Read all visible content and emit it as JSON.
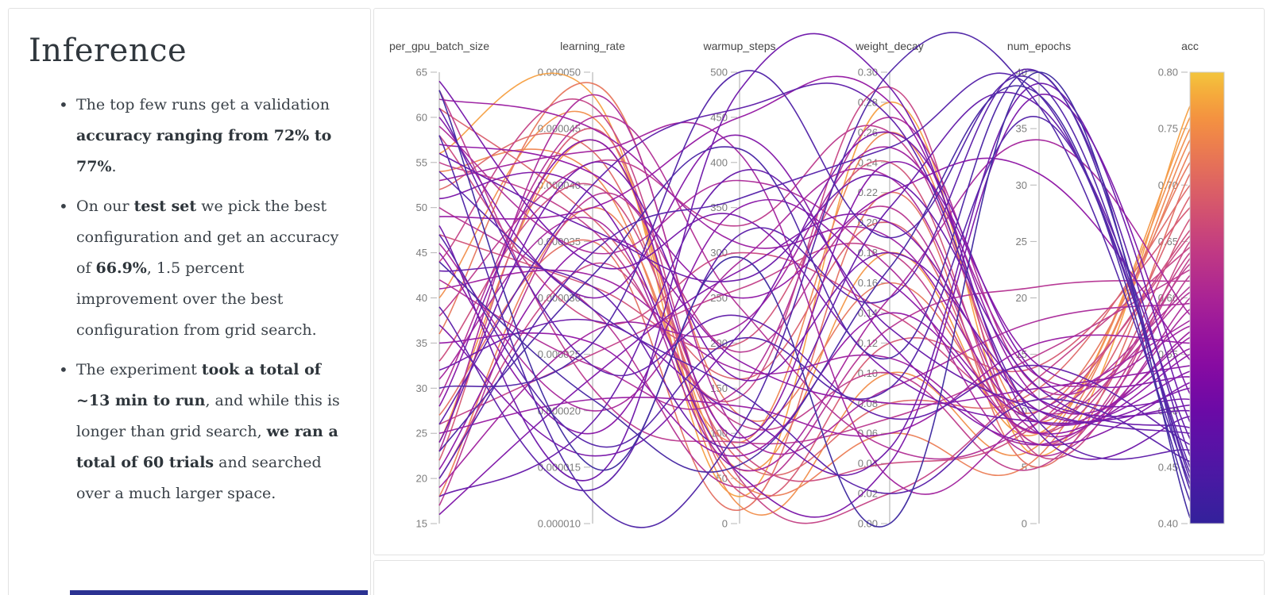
{
  "left_panel": {
    "title": "Inference",
    "bullets": [
      {
        "segments": [
          {
            "text": "The top few runs get a validation ",
            "bold": false
          },
          {
            "text": "accuracy ranging from 72% to 77%",
            "bold": true
          },
          {
            "text": ".",
            "bold": false
          }
        ]
      },
      {
        "segments": [
          {
            "text": "On our ",
            "bold": false
          },
          {
            "text": "test set",
            "bold": true
          },
          {
            "text": " we pick the best configuration and get an accuracy of ",
            "bold": false
          },
          {
            "text": "66.9%",
            "bold": true
          },
          {
            "text": ", 1.5 percent improvement over the best configuration from grid search.",
            "bold": false
          }
        ]
      },
      {
        "segments": [
          {
            "text": "The experiment ",
            "bold": false
          },
          {
            "text": "took a total of ~13 min to run",
            "bold": true
          },
          {
            "text": ", and while this is longer than grid search, ",
            "bold": false
          },
          {
            "text": "we ran a total of 60 trials",
            "bold": true
          },
          {
            "text": " and searched over a much larger space.",
            "bold": false
          }
        ]
      }
    ],
    "next_section_accent_color": "#2c3292"
  },
  "chart_data": {
    "type": "parallel_coordinates",
    "color_by": "acc",
    "legend_position": "right-colorbar",
    "grid": false,
    "axis_line_color": "#d4d4d4",
    "tick_label_color": "#7d7d7d",
    "title_color": "#474747",
    "colormap": {
      "name": "plasma",
      "stops": [
        [
          0.0,
          "#33219b"
        ],
        [
          0.12,
          "#4d17a5"
        ],
        [
          0.25,
          "#6b0aa6"
        ],
        [
          0.37,
          "#8c0ba1"
        ],
        [
          0.5,
          "#aa2395"
        ],
        [
          0.62,
          "#c43d80"
        ],
        [
          0.72,
          "#d85a6a"
        ],
        [
          0.82,
          "#ea7852"
        ],
        [
          0.92,
          "#f69a3c"
        ],
        [
          1.0,
          "#f3c53d"
        ]
      ]
    },
    "axes": [
      {
        "label": "per_gpu_batch_size",
        "min": 15,
        "max": 65,
        "tick_values": [
          65,
          60,
          55,
          50,
          45,
          40,
          35,
          30,
          25,
          20,
          15
        ],
        "tick_labels": [
          "65",
          "60",
          "55",
          "50",
          "45",
          "40",
          "35",
          "30",
          "25",
          "20",
          "15"
        ]
      },
      {
        "label": "learning_rate",
        "min": 1e-05,
        "max": 5e-05,
        "tick_values": [
          5e-05,
          4.5e-05,
          4e-05,
          3.5e-05,
          3e-05,
          2.5e-05,
          2e-05,
          1.5e-05,
          1e-05
        ],
        "tick_labels": [
          "0.000050",
          "0.000045",
          "0.000040",
          "0.000035",
          "0.000030",
          "0.000025",
          "0.000020",
          "0.000015",
          "0.000010"
        ]
      },
      {
        "label": "warmup_steps",
        "min": 0,
        "max": 500,
        "tick_values": [
          500,
          450,
          400,
          350,
          300,
          250,
          200,
          150,
          100,
          50,
          0
        ],
        "tick_labels": [
          "500",
          "450",
          "400",
          "350",
          "300",
          "250",
          "200",
          "150",
          "100",
          "50",
          "0"
        ]
      },
      {
        "label": "weight_decay",
        "min": 0,
        "max": 0.3,
        "tick_values": [
          0.3,
          0.28,
          0.26,
          0.24,
          0.22,
          0.2,
          0.18,
          0.16,
          0.14,
          0.12,
          0.1,
          0.08,
          0.06,
          0.04,
          0.02,
          0.0
        ],
        "tick_labels": [
          "0.30",
          "0.28",
          "0.26",
          "0.24",
          "0.22",
          "0.20",
          "0.18",
          "0.16",
          "0.14",
          "0.12",
          "0.10",
          "0.08",
          "0.06",
          "0.04",
          "0.02",
          "0.00"
        ]
      },
      {
        "label": "num_epochs",
        "min": 0,
        "max": 40,
        "tick_values": [
          40,
          35,
          30,
          25,
          20,
          15,
          10,
          5,
          0
        ],
        "tick_labels": [
          "40",
          "35",
          "30",
          "25",
          "20",
          "15",
          "10",
          "5",
          "0"
        ]
      },
      {
        "label": "acc",
        "min": 0.4,
        "max": 0.8,
        "colorbar": true,
        "tick_values": [
          0.8,
          0.75,
          0.7,
          0.65,
          0.6,
          0.55,
          0.5,
          0.45,
          0.4
        ],
        "tick_labels": [
          "0.80",
          "0.75",
          "0.70",
          "0.65",
          "0.60",
          "0.55",
          "0.50",
          "0.45",
          "0.40"
        ]
      }
    ],
    "trial_count": 60,
    "trials": [
      [
        56,
        4.8e-05,
        30,
        0.28,
        6,
        0.77
      ],
      [
        24,
        4.4e-05,
        60,
        0.18,
        8,
        0.76
      ],
      [
        40,
        4.6e-05,
        20,
        0.1,
        7,
        0.75
      ],
      [
        54,
        4.1e-05,
        90,
        0.26,
        9,
        0.74
      ],
      [
        18,
        3.8e-05,
        45,
        0.06,
        6,
        0.73
      ],
      [
        36,
        4.9e-05,
        120,
        0.16,
        10,
        0.72
      ],
      [
        27,
        3.5e-05,
        15,
        0.22,
        5,
        0.71
      ],
      [
        52,
        4.3e-05,
        70,
        0.08,
        12,
        0.7
      ],
      [
        61,
        3.7e-05,
        160,
        0.2,
        8,
        0.69
      ],
      [
        22,
        4.5e-05,
        35,
        0.12,
        14,
        0.68
      ],
      [
        47,
        3.1e-05,
        200,
        0.24,
        7,
        0.67
      ],
      [
        33,
        4e-05,
        80,
        0.04,
        9,
        0.66
      ],
      [
        58,
        2.8e-05,
        300,
        0.14,
        11,
        0.655
      ],
      [
        20,
        3.3e-05,
        140,
        0.29,
        6,
        0.65
      ],
      [
        44,
        4.7e-05,
        50,
        0.02,
        13,
        0.645
      ],
      [
        26,
        2.5e-05,
        260,
        0.18,
        8,
        0.64
      ],
      [
        55,
        3.6e-05,
        110,
        0.1,
        5,
        0.635
      ],
      [
        38,
        4.2e-05,
        330,
        0.26,
        10,
        0.63
      ],
      [
        63,
        2.2e-05,
        90,
        0.07,
        15,
        0.625
      ],
      [
        17,
        3.9e-05,
        190,
        0.21,
        7,
        0.62
      ],
      [
        50,
        2.9e-05,
        40,
        0.13,
        21,
        0.615
      ],
      [
        29,
        4.6e-05,
        240,
        0.05,
        9,
        0.61
      ],
      [
        42,
        2.4e-05,
        150,
        0.27,
        12,
        0.605
      ],
      [
        59,
        3.4e-05,
        380,
        0.17,
        6,
        0.6
      ],
      [
        23,
        4.8e-05,
        100,
        0.09,
        18,
        0.595
      ],
      [
        46,
        2e-05,
        290,
        0.23,
        8,
        0.59
      ],
      [
        31,
        3.7e-05,
        60,
        0.15,
        34,
        0.585
      ],
      [
        53,
        4.3e-05,
        410,
        0.03,
        10,
        0.58
      ],
      [
        19,
        2.7e-05,
        220,
        0.25,
        13,
        0.575
      ],
      [
        41,
        3.2e-05,
        170,
        0.11,
        7,
        0.57
      ],
      [
        62,
        4.5e-05,
        310,
        0.19,
        9,
        0.565
      ],
      [
        25,
        2.1e-05,
        130,
        0.06,
        16,
        0.56
      ],
      [
        49,
        3.8e-05,
        450,
        0.28,
        11,
        0.555
      ],
      [
        35,
        2.6e-05,
        75,
        0.14,
        8,
        0.55
      ],
      [
        57,
        4.1e-05,
        250,
        0.22,
        31,
        0.545
      ],
      [
        21,
        3.5e-05,
        180,
        0.08,
        12,
        0.54
      ],
      [
        45,
        1.8e-05,
        350,
        0.16,
        9,
        0.535
      ],
      [
        28,
        4.4e-05,
        95,
        0.24,
        14,
        0.53
      ],
      [
        60,
        3e-05,
        430,
        0.12,
        7,
        0.525
      ],
      [
        16,
        2.3e-05,
        280,
        0.2,
        10,
        0.52
      ],
      [
        51,
        3.9e-05,
        55,
        0.04,
        38,
        0.515
      ],
      [
        37,
        1.6e-05,
        210,
        0.26,
        13,
        0.51
      ],
      [
        64,
        3.3e-05,
        340,
        0.1,
        9,
        0.505
      ],
      [
        24,
        4.2e-05,
        160,
        0.18,
        11,
        0.5
      ],
      [
        48,
        1.4e-05,
        480,
        0.29,
        8,
        0.495
      ],
      [
        32,
        2.8e-05,
        120,
        0.05,
        39,
        0.49
      ],
      [
        56,
        3.6e-05,
        270,
        0.23,
        12,
        0.485
      ],
      [
        18,
        1.9e-05,
        390,
        0.13,
        10,
        0.48
      ],
      [
        43,
        3.1e-05,
        85,
        0.21,
        37,
        0.475
      ],
      [
        61,
        2.4e-05,
        230,
        0.07,
        14,
        0.47
      ],
      [
        26,
        4e-05,
        460,
        0.27,
        9,
        0.465
      ],
      [
        39,
        1.3e-05,
        320,
        0.15,
        40,
        0.46
      ],
      [
        54,
        2.9e-05,
        145,
        0.02,
        11,
        0.455
      ],
      [
        20,
        3.4e-05,
        360,
        0.25,
        38,
        0.45
      ],
      [
        47,
        1.7e-05,
        205,
        0.09,
        36,
        0.445
      ],
      [
        30,
        2.6e-05,
        500,
        0.19,
        39,
        0.44
      ],
      [
        58,
        1.2e-05,
        105,
        0.3,
        37,
        0.435
      ],
      [
        23,
        3.2e-05,
        415,
        0.11,
        40,
        0.43
      ],
      [
        44,
        2.1e-05,
        65,
        0.17,
        38,
        0.42
      ],
      [
        63,
        1.5e-05,
        295,
        0.0,
        40,
        0.405
      ]
    ]
  }
}
